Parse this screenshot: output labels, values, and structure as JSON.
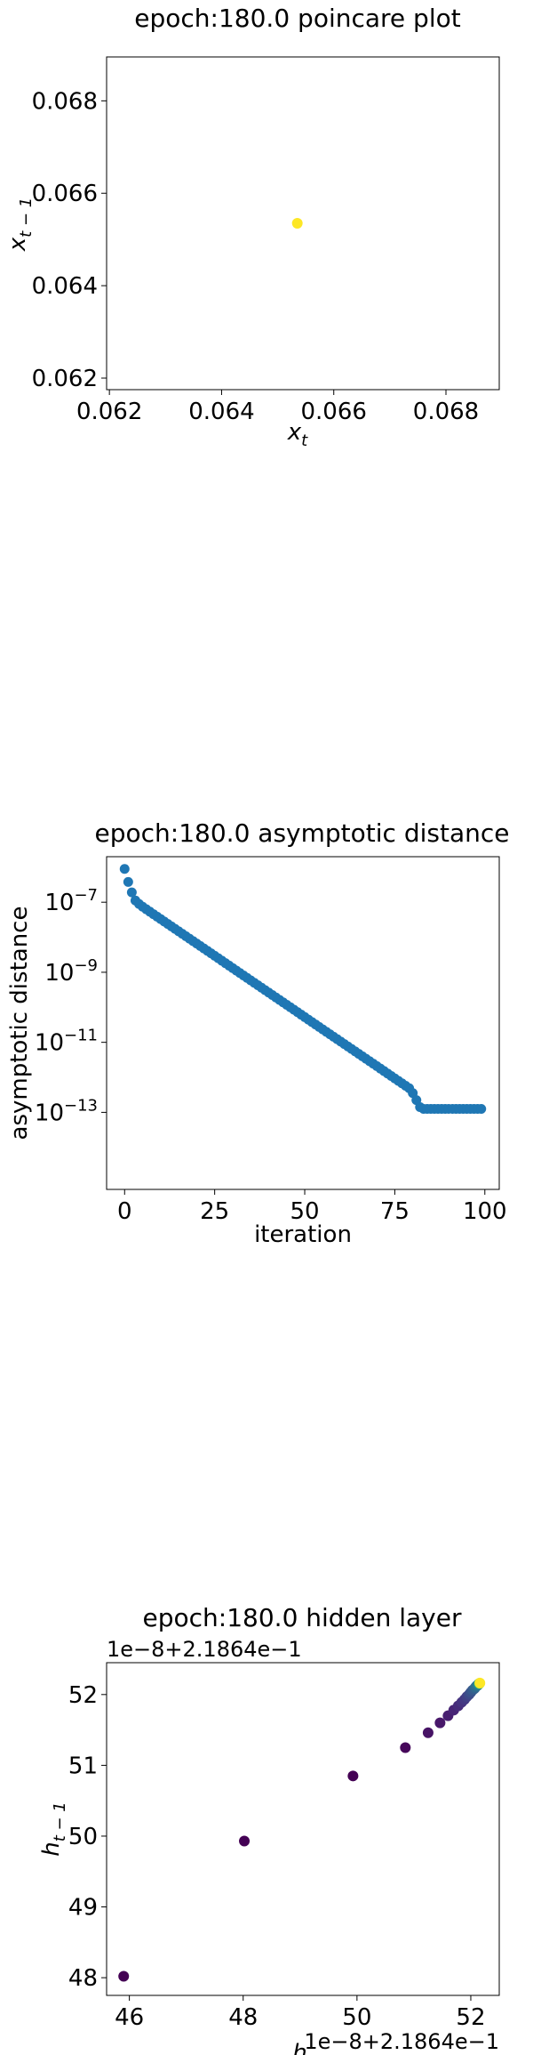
{
  "chart_data": [
    {
      "type": "scatter",
      "title": "epoch:180.0 poincare plot",
      "xlabel": "x",
      "xlabel_sub": "t",
      "ylabel": "x",
      "ylabel_sub": "t − 1",
      "xlim": [
        0.06195,
        0.06895
      ],
      "ylim": [
        0.06175,
        0.06895
      ],
      "x_ticks": [
        0.062,
        0.064,
        0.066,
        0.068
      ],
      "x_tick_labels": [
        "0.062",
        "0.064",
        "0.066",
        "0.068"
      ],
      "y_ticks": [
        0.062,
        0.064,
        0.066,
        0.068
      ],
      "y_tick_labels": [
        "0.062",
        "0.064",
        "0.066",
        "0.068"
      ],
      "points": [
        {
          "x": 0.06535,
          "y": 0.06535
        }
      ],
      "point_color": "#fde725"
    },
    {
      "type": "scatter",
      "title": "epoch:180.0 asymptotic distance",
      "xlabel": "iteration",
      "ylabel": "asymptotic distance",
      "xscale": "linear",
      "yscale": "log",
      "xlim": [
        -5,
        104
      ],
      "ylim_log10": [
        -15.2,
        -5.7
      ],
      "x_ticks": [
        0,
        25,
        50,
        75,
        100
      ],
      "x_tick_labels": [
        "0",
        "25",
        "50",
        "75",
        "100"
      ],
      "y_ticks_log10": [
        -7,
        -9,
        -11,
        -13
      ],
      "y_tick_bases": [
        "10",
        "10",
        "10",
        "10"
      ],
      "y_tick_exps": [
        "−7",
        "−9",
        "−11",
        "−13"
      ],
      "series_color": "#1f77b4",
      "x": [
        0,
        1,
        2,
        3,
        4,
        5,
        6,
        7,
        8,
        9,
        10,
        11,
        12,
        13,
        14,
        15,
        16,
        17,
        18,
        19,
        20,
        21,
        22,
        23,
        24,
        25,
        26,
        27,
        28,
        29,
        30,
        31,
        32,
        33,
        34,
        35,
        36,
        37,
        38,
        39,
        40,
        41,
        42,
        43,
        44,
        45,
        46,
        47,
        48,
        49,
        50,
        51,
        52,
        53,
        54,
        55,
        56,
        57,
        58,
        59,
        60,
        61,
        62,
        63,
        64,
        65,
        66,
        67,
        68,
        69,
        70,
        71,
        72,
        73,
        74,
        75,
        76,
        77,
        78,
        79,
        80,
        81,
        82,
        83,
        84,
        85,
        86,
        87,
        88,
        89,
        90,
        91,
        92,
        93,
        94,
        95,
        96,
        97,
        98,
        99
      ],
      "log10_y": [
        -6.05,
        -6.42,
        -6.72,
        -6.95,
        -7.05,
        -7.13,
        -7.2,
        -7.27,
        -7.34,
        -7.41,
        -7.48,
        -7.55,
        -7.62,
        -7.69,
        -7.76,
        -7.83,
        -7.9,
        -7.97,
        -8.04,
        -8.11,
        -8.18,
        -8.25,
        -8.32,
        -8.39,
        -8.46,
        -8.53,
        -8.6,
        -8.67,
        -8.74,
        -8.81,
        -8.88,
        -8.95,
        -9.02,
        -9.09,
        -9.16,
        -9.23,
        -9.3,
        -9.37,
        -9.44,
        -9.51,
        -9.58,
        -9.65,
        -9.72,
        -9.79,
        -9.86,
        -9.93,
        -10.0,
        -10.07,
        -10.14,
        -10.21,
        -10.28,
        -10.35,
        -10.42,
        -10.49,
        -10.56,
        -10.63,
        -10.7,
        -10.77,
        -10.84,
        -10.91,
        -10.98,
        -11.05,
        -11.12,
        -11.19,
        -11.26,
        -11.33,
        -11.4,
        -11.47,
        -11.54,
        -11.61,
        -11.68,
        -11.75,
        -11.82,
        -11.89,
        -11.96,
        -12.03,
        -12.1,
        -12.17,
        -12.24,
        -12.31,
        -12.45,
        -12.65,
        -12.85,
        -12.9,
        -12.9,
        -12.9,
        -12.9,
        -12.9,
        -12.9,
        -12.9,
        -12.9,
        -12.9,
        -12.9,
        -12.9,
        -12.9,
        -12.9,
        -12.9,
        -12.9,
        -12.9,
        -12.9
      ]
    },
    {
      "type": "scatter",
      "title": "epoch:180.0 hidden layer",
      "offset_text_y": "1e−8+2.1864e−1",
      "offset_text_x": "1e−8+2.1864e−1",
      "xlabel": "h",
      "xlabel_sub": "t",
      "ylabel": "h",
      "ylabel_sub": "t − 1",
      "xlim": [
        45.6,
        52.5
      ],
      "ylim": [
        47.75,
        52.45
      ],
      "x_ticks": [
        46,
        48,
        50,
        52
      ],
      "x_tick_labels": [
        "46",
        "48",
        "50",
        "52"
      ],
      "y_ticks": [
        48,
        49,
        50,
        51,
        52
      ],
      "y_tick_labels": [
        "48",
        "49",
        "50",
        "51",
        "52"
      ],
      "points": [
        {
          "x": 45.9,
          "y": 48.02,
          "c": "#440154"
        },
        {
          "x": 48.02,
          "y": 49.93,
          "c": "#440154"
        },
        {
          "x": 49.93,
          "y": 50.85,
          "c": "#440154"
        },
        {
          "x": 50.85,
          "y": 51.25,
          "c": "#46075a"
        },
        {
          "x": 51.25,
          "y": 51.46,
          "c": "#471365"
        },
        {
          "x": 51.46,
          "y": 51.6,
          "c": "#48186a"
        },
        {
          "x": 51.6,
          "y": 51.7,
          "c": "#481f70"
        },
        {
          "x": 51.7,
          "y": 51.78,
          "c": "#482576"
        },
        {
          "x": 51.78,
          "y": 51.84,
          "c": "#472c7a"
        },
        {
          "x": 51.84,
          "y": 51.89,
          "c": "#46337f"
        },
        {
          "x": 51.89,
          "y": 51.93,
          "c": "#443983"
        },
        {
          "x": 51.93,
          "y": 51.97,
          "c": "#424086"
        },
        {
          "x": 51.97,
          "y": 52.0,
          "c": "#3e4989"
        },
        {
          "x": 52.0,
          "y": 52.03,
          "c": "#3b518b"
        },
        {
          "x": 52.03,
          "y": 52.06,
          "c": "#38598c"
        },
        {
          "x": 52.06,
          "y": 52.08,
          "c": "#355f8d"
        },
        {
          "x": 52.08,
          "y": 52.1,
          "c": "#31688e"
        },
        {
          "x": 52.1,
          "y": 52.12,
          "c": "#2e6f8e"
        },
        {
          "x": 52.12,
          "y": 52.13,
          "c": "#2b758e"
        },
        {
          "x": 52.13,
          "y": 52.14,
          "c": "#297b8e"
        },
        {
          "x": 52.14,
          "y": 52.15,
          "c": "#25848e"
        },
        {
          "x": 52.15,
          "y": 52.155,
          "c": "#22a884"
        },
        {
          "x": 52.155,
          "y": 52.16,
          "c": "#7ad151"
        },
        {
          "x": 52.16,
          "y": 52.162,
          "c": "#fde725"
        }
      ]
    }
  ]
}
